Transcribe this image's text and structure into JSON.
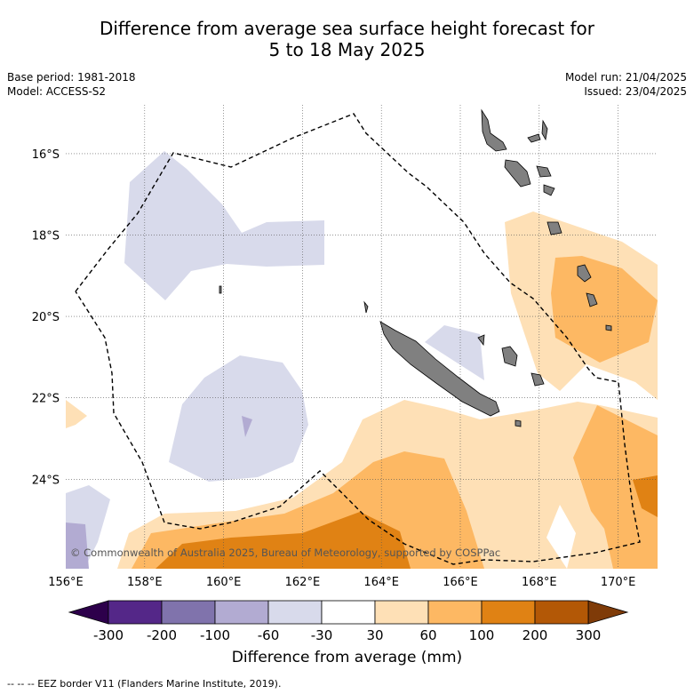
{
  "title": {
    "line1": "Difference from average sea surface height forecast for",
    "line2": "5 to 18 May 2025"
  },
  "meta_left": {
    "base_period": "Base period: 1981-2018",
    "model": "Model: ACCESS-S2"
  },
  "meta_right": {
    "model_run": "Model run: 21/04/2025",
    "issued": "Issued: 23/04/2025"
  },
  "map": {
    "lon_range": [
      156,
      171
    ],
    "lat_range": [
      -26.2,
      -14.8
    ],
    "lat_ticks": [
      {
        "value": -16,
        "label": "16°S"
      },
      {
        "value": -18,
        "label": "18°S"
      },
      {
        "value": -20,
        "label": "20°S"
      },
      {
        "value": -22,
        "label": "22°S"
      },
      {
        "value": -24,
        "label": "24°S"
      }
    ],
    "lon_ticks": [
      {
        "value": 156,
        "label": "156°E"
      },
      {
        "value": 158,
        "label": "158°E"
      },
      {
        "value": 160,
        "label": "160°E"
      },
      {
        "value": 162,
        "label": "162°E"
      },
      {
        "value": 164,
        "label": "164°E"
      },
      {
        "value": 166,
        "label": "166°E"
      },
      {
        "value": 168,
        "label": "168°E"
      },
      {
        "value": 170,
        "label": "170°E"
      }
    ],
    "land_color": "#808080",
    "copyright": "© Commonwealth of Australia 2025, Bureau of Meteorology, supported by COSPPac"
  },
  "colorbar": {
    "title": "Difference from average (mm)",
    "labels": [
      "-300",
      "-200",
      "-100",
      "-60",
      "-30",
      "30",
      "60",
      "100",
      "200",
      "300"
    ],
    "colors": [
      "#542788",
      "#8073ac",
      "#b2abd2",
      "#d8daeb",
      "#ffffff",
      "#fee0b6",
      "#fdb863",
      "#e08214",
      "#b35806"
    ],
    "under_color": "#2d004b",
    "over_color": "#7f3b08"
  },
  "footer": "-- -- -- EEZ border V11 (Flanders Marine Institute, 2019)."
}
